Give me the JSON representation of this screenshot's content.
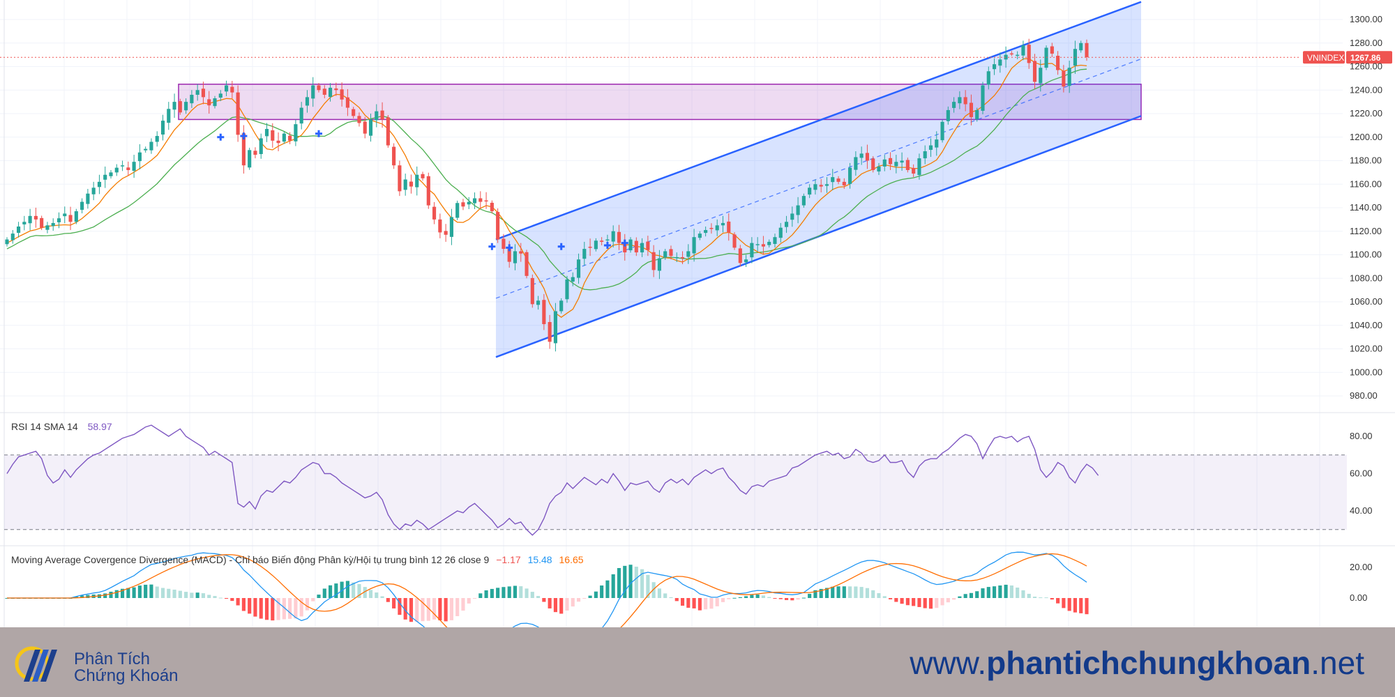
{
  "symbol": "VNINDEX",
  "last_price_label": "1267.86",
  "price_axis_ticks": [
    "1300.00",
    "1280.00",
    "1260.00",
    "1240.00",
    "1220.00",
    "1200.00",
    "1180.00",
    "1160.00",
    "1140.00",
    "1120.00",
    "1100.00",
    "1080.00",
    "1060.00",
    "1040.00",
    "1020.00",
    "1000.00",
    "980.00"
  ],
  "rsi": {
    "title": "RSI 14 SMA 14",
    "value": "58.97",
    "ticks": [
      "80.00",
      "60.00",
      "40.00"
    ]
  },
  "macd": {
    "title": "Moving Average Covergence Divergence (MACD) - Chỉ báo Biến động Phân kỳ/Hội tụ trung bình 12 26 close 9",
    "hist_value": "−1.17",
    "macd_value": "15.48",
    "signal_value": "16.65",
    "ticks": [
      "20.00",
      "0.00"
    ]
  },
  "footer": {
    "logo_line1": "Phân Tích",
    "logo_line2": "Chứng Khoán",
    "website_prefix": "www.",
    "website_bold": "phantichchungkhoan",
    "website_suffix": ".net"
  },
  "colors": {
    "up": "#26a69a",
    "down": "#ef5350",
    "channel": "#2962ff",
    "zone": "#9c27b0",
    "rsi_line": "#7e57c2",
    "macd_line": "#2196f3",
    "signal_line": "#ff6d00",
    "sma_fast": "#f57c00",
    "sma_slow": "#4caf50"
  },
  "chart_data": [
    {
      "type": "candlestick",
      "title": "VNINDEX",
      "ylim": [
        975,
        1318
      ],
      "close": [
        1113,
        1118,
        1124,
        1128,
        1133,
        1130,
        1123,
        1125,
        1127,
        1131,
        1135,
        1128,
        1137,
        1145,
        1152,
        1157,
        1162,
        1168,
        1170,
        1174,
        1176,
        1172,
        1179,
        1187,
        1190,
        1196,
        1201,
        1214,
        1224,
        1230,
        1221,
        1230,
        1236,
        1240,
        1234,
        1227,
        1233,
        1237,
        1244,
        1238,
        1202,
        1176,
        1189,
        1185,
        1199,
        1207,
        1197,
        1195,
        1203,
        1197,
        1211,
        1225,
        1234,
        1244,
        1240,
        1236,
        1242,
        1240,
        1232,
        1225,
        1218,
        1212,
        1203,
        1215,
        1222,
        1215,
        1193,
        1176,
        1154,
        1164,
        1158,
        1168,
        1165,
        1142,
        1130,
        1119,
        1117,
        1132,
        1144,
        1141,
        1145,
        1148,
        1145,
        1146,
        1137,
        1113,
        1105,
        1094,
        1103,
        1101,
        1082,
        1058,
        1061,
        1041,
        1026,
        1052,
        1061,
        1079,
        1081,
        1096,
        1105,
        1106,
        1112,
        1111,
        1113,
        1120,
        1110,
        1102,
        1113,
        1102,
        1110,
        1104,
        1087,
        1097,
        1103,
        1099,
        1098,
        1097,
        1103,
        1115,
        1118,
        1121,
        1122,
        1125,
        1127,
        1119,
        1106,
        1093,
        1096,
        1110,
        1109,
        1107,
        1111,
        1115,
        1123,
        1128,
        1135,
        1142,
        1150,
        1157,
        1160,
        1158,
        1160,
        1166,
        1162,
        1159,
        1174,
        1183,
        1186,
        1180,
        1172,
        1175,
        1181,
        1177,
        1179,
        1180,
        1172,
        1169,
        1182,
        1188,
        1193,
        1198,
        1213,
        1223,
        1230,
        1234,
        1228,
        1217,
        1223,
        1244,
        1256,
        1262,
        1266,
        1270,
        1271,
        1270,
        1278,
        1263,
        1247,
        1259,
        1276,
        1271,
        1257,
        1243,
        1259,
        1275,
        1280,
        1268
      ],
      "y_axis_range": [
        980,
        1300
      ],
      "overlays": [
        "SMA fast",
        "SMA slow",
        "ascending channel 1010→1315",
        "resistance zone 1215–1245"
      ]
    },
    {
      "type": "line",
      "title": "RSI 14 SMA 14",
      "ylim": [
        25,
        92
      ],
      "ylines": [
        70,
        30
      ],
      "values": [
        60,
        65,
        69,
        70,
        71,
        72,
        68,
        59,
        55,
        57,
        62,
        58,
        62,
        65,
        68,
        70,
        71,
        73,
        75,
        77,
        79,
        80,
        81,
        83,
        85,
        86,
        84,
        82,
        80,
        82,
        84,
        80,
        78,
        76,
        74,
        70,
        72,
        70,
        68,
        66,
        44,
        42,
        45,
        41,
        48,
        51,
        50,
        53,
        56,
        55,
        58,
        62,
        64,
        66,
        65,
        60,
        60,
        58,
        55,
        53,
        51,
        49,
        47,
        48,
        50,
        46,
        38,
        33,
        30,
        33,
        32,
        35,
        33,
        30,
        32,
        34,
        36,
        38,
        40,
        39,
        42,
        44,
        41,
        38,
        35,
        31,
        33,
        36,
        33,
        34,
        30,
        27,
        30,
        36,
        44,
        48,
        50,
        55,
        52,
        55,
        58,
        56,
        54,
        57,
        55,
        60,
        56,
        51,
        55,
        54,
        55,
        56,
        52,
        50,
        55,
        57,
        55,
        57,
        54,
        58,
        60,
        62,
        60,
        62,
        63,
        58,
        55,
        51,
        49,
        53,
        54,
        53,
        56,
        57,
        58,
        59,
        63,
        64,
        66,
        68,
        70,
        71,
        72,
        70,
        71,
        68,
        69,
        73,
        71,
        67,
        66,
        67,
        70,
        66,
        66,
        67,
        61,
        58,
        64,
        67,
        68,
        68,
        71,
        73,
        76,
        79,
        81,
        80,
        76,
        68,
        74,
        79,
        80,
        79,
        80,
        77,
        79,
        80,
        73,
        62,
        58,
        61,
        66,
        64,
        58,
        55,
        61,
        65,
        63,
        59
      ],
      "value_label": 58.97
    },
    {
      "type": "bar+line",
      "title": "MACD 12 26 close 9",
      "ylim": [
        -12,
        24
      ],
      "macd_series_end": 15.48,
      "signal_series_end": 16.65,
      "histogram_end": -1.17
    }
  ]
}
